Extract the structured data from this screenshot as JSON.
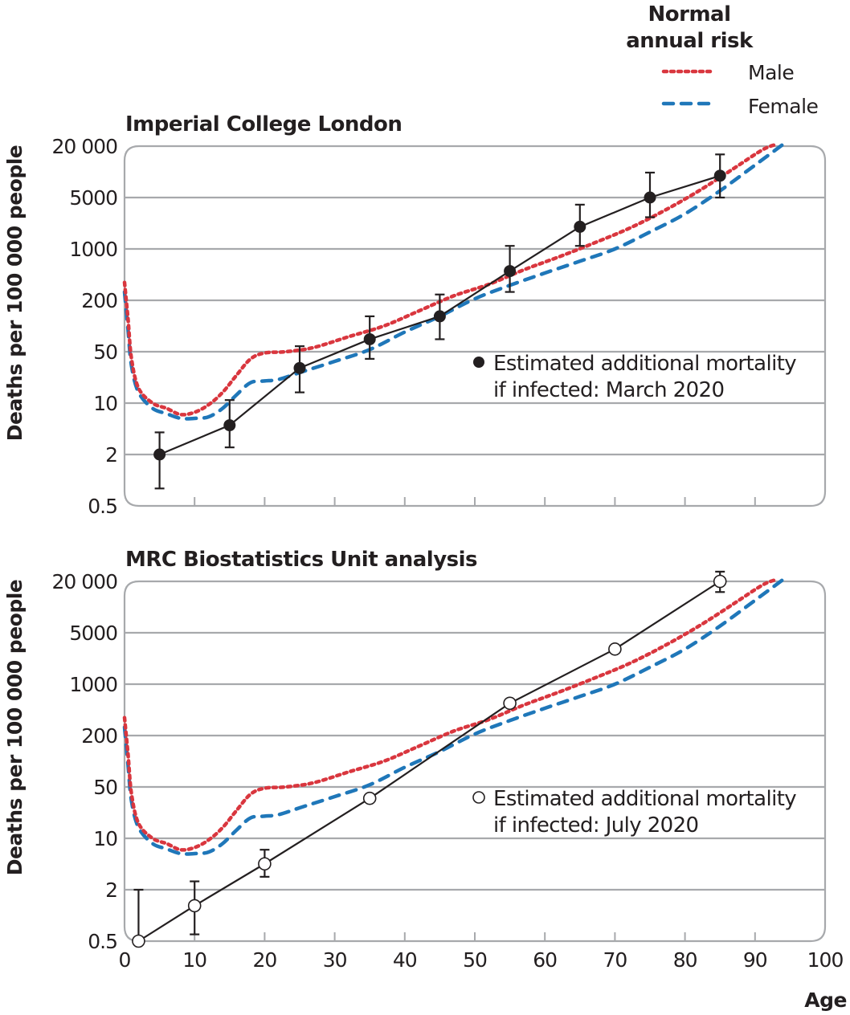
{
  "legend": {
    "title_line1": "Normal",
    "title_line2": "annual risk",
    "male_label": "Male",
    "female_label": "Female",
    "male_color": "#d9363e",
    "female_color": "#1f77b9"
  },
  "y_axis_title": "Deaths per 100 000 people",
  "x_axis_title": "Age",
  "chart_data": [
    {
      "type": "line",
      "title": "Imperial College London",
      "xlabel": "Age",
      "ylabel": "Deaths per 100 000 people",
      "yscale": "log",
      "yticks": [
        20000,
        5000,
        1000,
        200,
        50,
        10,
        2,
        0.5
      ],
      "ytick_labels": [
        "20 000",
        "5000",
        "1000",
        "200",
        "50",
        "10",
        "2",
        "0.5"
      ],
      "xlim": [
        0,
        100
      ],
      "xticks": [
        0,
        10,
        20,
        30,
        40,
        50,
        60,
        70,
        80,
        90,
        100
      ],
      "xtick_labels_shown": false,
      "grid": "horizontal",
      "series": [
        {
          "name": "Estimated additional mortality if infected: March 2020",
          "marker": "filled-circle",
          "color": "#231f20",
          "points": [
            {
              "x": 5,
              "y": 2,
              "lo": 0.8,
              "hi": 4
            },
            {
              "x": 15,
              "y": 5,
              "lo": 2.5,
              "hi": 11
            },
            {
              "x": 25,
              "y": 30,
              "lo": 14,
              "hi": 58
            },
            {
              "x": 35,
              "y": 70,
              "lo": 40,
              "hi": 130
            },
            {
              "x": 45,
              "y": 130,
              "lo": 70,
              "hi": 240
            },
            {
              "x": 55,
              "y": 500,
              "lo": 260,
              "hi": 1100
            },
            {
              "x": 65,
              "y": 2000,
              "lo": 1100,
              "hi": 4000
            },
            {
              "x": 75,
              "y": 5000,
              "lo": 2700,
              "hi": 9800
            },
            {
              "x": 85,
              "y": 9000,
              "lo": 5000,
              "hi": 16000
            }
          ]
        },
        {
          "name": "Male",
          "style": "dotted",
          "color": "#d9363e",
          "points": [
            [
              0,
              350
            ],
            [
              0.5,
              120
            ],
            [
              1,
              40
            ],
            [
              2,
              16
            ],
            [
              4,
              10
            ],
            [
              6,
              8.5
            ],
            [
              8,
              7
            ],
            [
              10,
              7.5
            ],
            [
              12,
              9.5
            ],
            [
              14,
              14
            ],
            [
              16,
              24
            ],
            [
              18,
              40
            ],
            [
              20,
              48
            ],
            [
              23,
              50
            ],
            [
              27,
              56
            ],
            [
              32,
              75
            ],
            [
              37,
              100
            ],
            [
              42,
              150
            ],
            [
              47,
              230
            ],
            [
              52,
              330
            ],
            [
              57,
              520
            ],
            [
              62,
              780
            ],
            [
              67,
              1200
            ],
            [
              72,
              1900
            ],
            [
              77,
              3300
            ],
            [
              82,
              6000
            ],
            [
              87,
              11000
            ],
            [
              91,
              18000
            ],
            [
              93,
              21000
            ]
          ]
        },
        {
          "name": "Female",
          "style": "dashed",
          "color": "#1f77b9",
          "points": [
            [
              0,
              260
            ],
            [
              0.5,
              90
            ],
            [
              1,
              32
            ],
            [
              2,
              14
            ],
            [
              4,
              8.5
            ],
            [
              6,
              7.2
            ],
            [
              8,
              6.2
            ],
            [
              10,
              6.2
            ],
            [
              12,
              6.5
            ],
            [
              14,
              8.5
            ],
            [
              16,
              13
            ],
            [
              18,
              19
            ],
            [
              20,
              20
            ],
            [
              22,
              21
            ],
            [
              25,
              26
            ],
            [
              30,
              37
            ],
            [
              35,
              53
            ],
            [
              40,
              85
            ],
            [
              45,
              130
            ],
            [
              50,
              210
            ],
            [
              55,
              320
            ],
            [
              60,
              470
            ],
            [
              65,
              680
            ],
            [
              70,
              1000
            ],
            [
              75,
              1700
            ],
            [
              80,
              3000
            ],
            [
              85,
              6000
            ],
            [
              90,
              12000
            ],
            [
              94,
              21000
            ]
          ]
        }
      ]
    },
    {
      "type": "line",
      "title": "MRC Biostatistics Unit analysis",
      "xlabel": "Age",
      "ylabel": "Deaths per 100 000 people",
      "yscale": "log",
      "yticks": [
        20000,
        5000,
        1000,
        200,
        50,
        10,
        2,
        0.5
      ],
      "ytick_labels": [
        "20 000",
        "5000",
        "1000",
        "200",
        "50",
        "10",
        "2",
        "0.5"
      ],
      "xlim": [
        0,
        100
      ],
      "xticks": [
        0,
        10,
        20,
        30,
        40,
        50,
        60,
        70,
        80,
        90,
        100
      ],
      "xtick_labels": [
        "0",
        "10",
        "20",
        "30",
        "40",
        "50",
        "60",
        "70",
        "80",
        "90",
        "100"
      ],
      "grid": "horizontal",
      "series": [
        {
          "name": "Estimated additional mortality if infected: July 2020",
          "marker": "open-circle",
          "color": "#231f20",
          "points": [
            {
              "x": 2,
              "y": 0.5,
              "lo": 0.5,
              "hi": 2
            },
            {
              "x": 10,
              "y": 1.3,
              "lo": 0.6,
              "hi": 2.6
            },
            {
              "x": 20,
              "y": 4.5,
              "lo": 3,
              "hi": 7
            },
            {
              "x": 35,
              "y": 35
            },
            {
              "x": 55,
              "y": 550
            },
            {
              "x": 70,
              "y": 3000
            },
            {
              "x": 85,
              "y": 20000,
              "lo": 15000,
              "hi": 26000
            }
          ]
        },
        {
          "name": "Male",
          "style": "dotted",
          "color": "#d9363e",
          "points": [
            [
              0,
              350
            ],
            [
              0.5,
              120
            ],
            [
              1,
              40
            ],
            [
              2,
              16
            ],
            [
              4,
              10
            ],
            [
              6,
              8.5
            ],
            [
              8,
              7
            ],
            [
              10,
              7.5
            ],
            [
              12,
              9.5
            ],
            [
              14,
              14
            ],
            [
              16,
              24
            ],
            [
              18,
              40
            ],
            [
              20,
              48
            ],
            [
              23,
              50
            ],
            [
              27,
              56
            ],
            [
              32,
              75
            ],
            [
              37,
              100
            ],
            [
              42,
              150
            ],
            [
              47,
              230
            ],
            [
              52,
              330
            ],
            [
              57,
              520
            ],
            [
              62,
              780
            ],
            [
              67,
              1200
            ],
            [
              72,
              1900
            ],
            [
              77,
              3300
            ],
            [
              82,
              6000
            ],
            [
              87,
              11000
            ],
            [
              91,
              18000
            ],
            [
              93,
              21000
            ]
          ]
        },
        {
          "name": "Female",
          "style": "dashed",
          "color": "#1f77b9",
          "points": [
            [
              0,
              260
            ],
            [
              0.5,
              90
            ],
            [
              1,
              32
            ],
            [
              2,
              14
            ],
            [
              4,
              8.5
            ],
            [
              6,
              7.2
            ],
            [
              8,
              6.2
            ],
            [
              10,
              6.2
            ],
            [
              12,
              6.5
            ],
            [
              14,
              8.5
            ],
            [
              16,
              13
            ],
            [
              18,
              19
            ],
            [
              20,
              20
            ],
            [
              22,
              21
            ],
            [
              25,
              26
            ],
            [
              30,
              37
            ],
            [
              35,
              53
            ],
            [
              40,
              85
            ],
            [
              45,
              130
            ],
            [
              50,
              210
            ],
            [
              55,
              320
            ],
            [
              60,
              470
            ],
            [
              65,
              680
            ],
            [
              70,
              1000
            ],
            [
              75,
              1700
            ],
            [
              80,
              3000
            ],
            [
              85,
              6000
            ],
            [
              90,
              12000
            ],
            [
              94,
              21000
            ]
          ]
        }
      ]
    }
  ],
  "annotations": [
    {
      "line1": "Estimated additional mortality",
      "line2": "if infected: March 2020"
    },
    {
      "line1": "Estimated additional mortality",
      "line2": "if infected: July 2020"
    }
  ]
}
